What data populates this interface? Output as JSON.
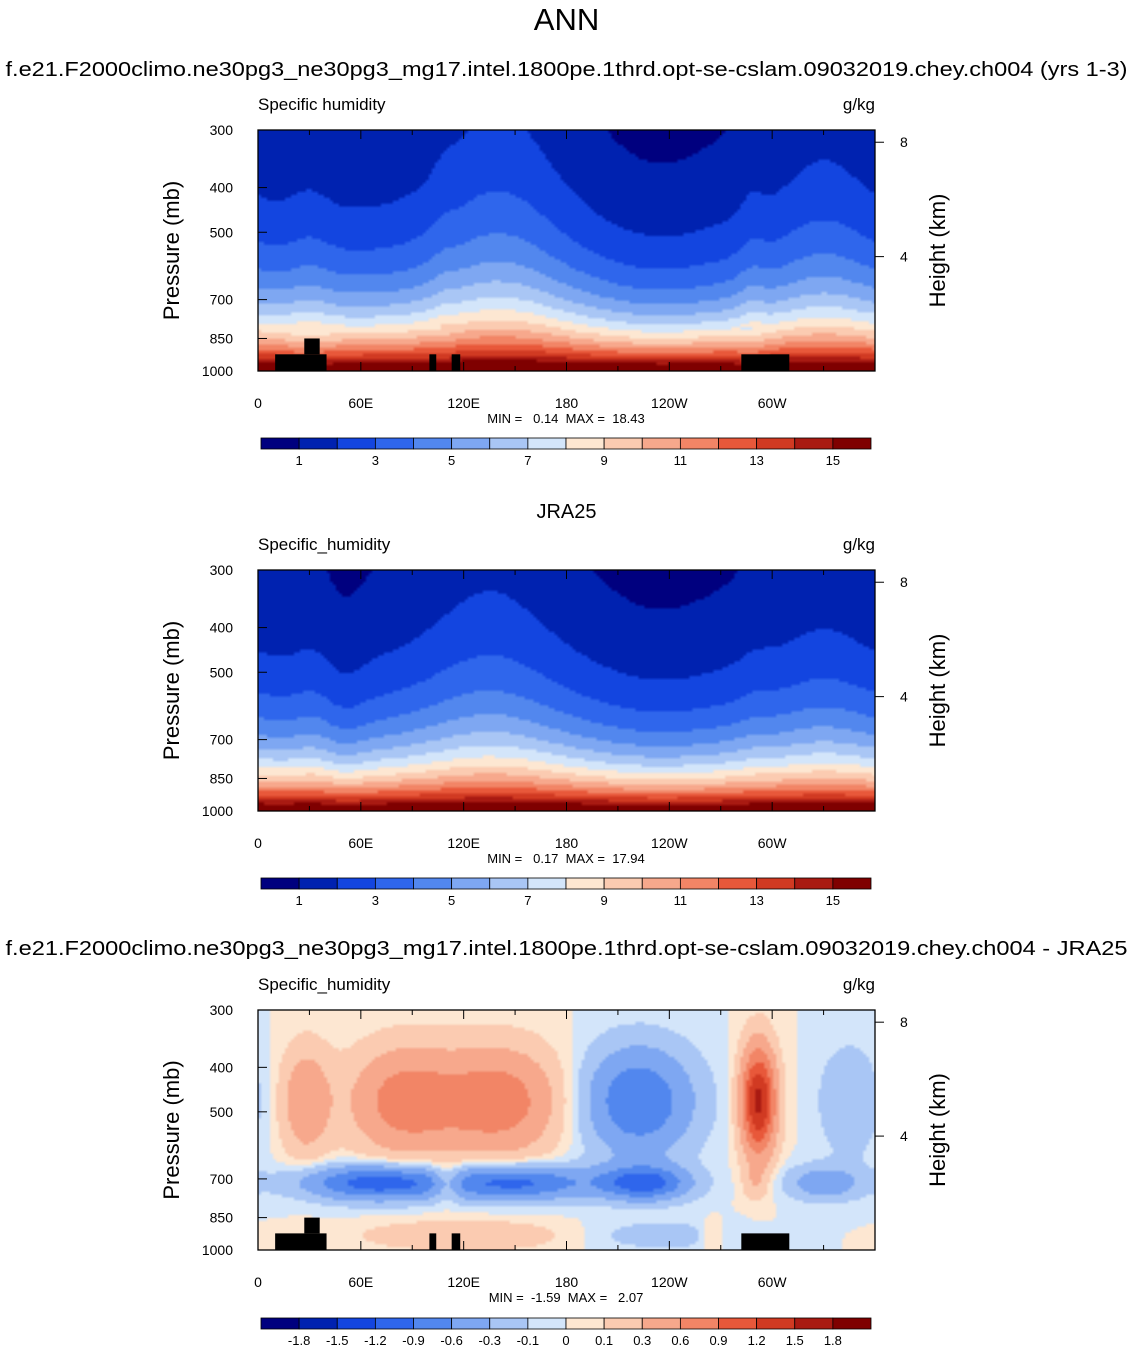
{
  "page": {
    "title": "ANN",
    "model_case": "f.e21.F2000climo.ne30pg3_ne30pg3_mg17.intel.1800pe.1thrd.opt-se-cslam.09032019.chey.ch004 (yrs 1-3)",
    "obs_case": "JRA25",
    "diff_case": "f.e21.F2000climo.ne30pg3_ne30pg3_mg17.intel.1800pe.1thrd.opt-se-cslam.09032019.chey.ch004 - JRA25"
  },
  "chart_data": [
    {
      "type": "heatmap",
      "panel": "model",
      "left_label": "Specific humidity",
      "units": "g/kg",
      "ylabel": "Pressure (mb)",
      "ylabel_right": "Height (km)",
      "x_ticks": [
        "0",
        "60E",
        "120E",
        "180",
        "120W",
        "60W"
      ],
      "x_tick_values": [
        0,
        60,
        120,
        180,
        240,
        300
      ],
      "xlim": [
        0,
        360
      ],
      "y_ticks": [
        "300",
        "400",
        "500",
        "700",
        "850",
        "1000"
      ],
      "y_tick_values": [
        300,
        400,
        500,
        700,
        850,
        1000
      ],
      "ylim": [
        1000,
        300
      ],
      "y_scale": "log",
      "height_ticks": [
        "8",
        "4"
      ],
      "height_tick_values": [
        8,
        4
      ],
      "stats": "MIN =   0.14  MAX =  18.43",
      "min": 0.14,
      "max": 18.43,
      "colorbar_levels": [
        0,
        1,
        2,
        3,
        4,
        5,
        6,
        7,
        8,
        9,
        10,
        11,
        12,
        13,
        14,
        15,
        16
      ],
      "colorbar_labels": [
        "1",
        "3",
        "5",
        "7",
        "9",
        "11",
        "13",
        "15"
      ],
      "colorbar_label_values": [
        1,
        3,
        5,
        7,
        9,
        11,
        13,
        15
      ],
      "masked": true
    },
    {
      "type": "heatmap",
      "panel": "obs",
      "left_label": "Specific_humidity",
      "units": "g/kg",
      "ylabel": "Pressure (mb)",
      "ylabel_right": "Height (km)",
      "x_ticks": [
        "0",
        "60E",
        "120E",
        "180",
        "120W",
        "60W"
      ],
      "x_tick_values": [
        0,
        60,
        120,
        180,
        240,
        300
      ],
      "xlim": [
        0,
        360
      ],
      "y_ticks": [
        "300",
        "400",
        "500",
        "700",
        "850",
        "1000"
      ],
      "y_tick_values": [
        300,
        400,
        500,
        700,
        850,
        1000
      ],
      "ylim": [
        1000,
        300
      ],
      "y_scale": "log",
      "height_ticks": [
        "8",
        "4"
      ],
      "height_tick_values": [
        8,
        4
      ],
      "stats": "MIN =   0.17  MAX =  17.94",
      "min": 0.17,
      "max": 17.94,
      "colorbar_levels": [
        0,
        1,
        2,
        3,
        4,
        5,
        6,
        7,
        8,
        9,
        10,
        11,
        12,
        13,
        14,
        15,
        16
      ],
      "colorbar_labels": [
        "1",
        "3",
        "5",
        "7",
        "9",
        "11",
        "13",
        "15"
      ],
      "colorbar_label_values": [
        1,
        3,
        5,
        7,
        9,
        11,
        13,
        15
      ],
      "masked": false
    },
    {
      "type": "heatmap",
      "panel": "diff",
      "left_label": "Specific_humidity",
      "units": "g/kg",
      "ylabel": "Pressure (mb)",
      "ylabel_right": "Height (km)",
      "x_ticks": [
        "0",
        "60E",
        "120E",
        "180",
        "120W",
        "60W"
      ],
      "x_tick_values": [
        0,
        60,
        120,
        180,
        240,
        300
      ],
      "xlim": [
        0,
        360
      ],
      "y_ticks": [
        "300",
        "400",
        "500",
        "700",
        "850",
        "1000"
      ],
      "y_tick_values": [
        300,
        400,
        500,
        700,
        850,
        1000
      ],
      "ylim": [
        1000,
        300
      ],
      "y_scale": "log",
      "height_ticks": [
        "8",
        "4"
      ],
      "height_tick_values": [
        8,
        4
      ],
      "stats": "MIN =  -1.59  MAX =   2.07",
      "min": -1.59,
      "max": 2.07,
      "colorbar_levels": [
        -2.1,
        -1.8,
        -1.5,
        -1.2,
        -0.9,
        -0.6,
        -0.3,
        -0.1,
        0,
        0.1,
        0.3,
        0.6,
        0.9,
        1.2,
        1.5,
        1.8,
        2.1
      ],
      "colorbar_labels": [
        "-1.8",
        "-1.5",
        "-1.2",
        "-0.9",
        "-0.6",
        "-0.3",
        "-0.1",
        "0",
        "0.1",
        "0.3",
        "0.6",
        "0.9",
        "1.2",
        "1.5",
        "1.8"
      ],
      "colorbar_label_values": [
        -1.8,
        -1.5,
        -1.2,
        -0.9,
        -0.6,
        -0.3,
        -0.1,
        0,
        0.1,
        0.3,
        0.6,
        0.9,
        1.2,
        1.5,
        1.8
      ],
      "masked": true
    }
  ],
  "colormap": [
    "#00007f",
    "#0022b0",
    "#1345e0",
    "#2f66ec",
    "#5287ee",
    "#7ea7f2",
    "#a9c6f5",
    "#d3e5fa",
    "#fde7d2",
    "#fbcbb1",
    "#f7a88c",
    "#f28566",
    "#e8583a",
    "#d13a22",
    "#a91a12",
    "#7f0000"
  ],
  "mask_color": "#000000",
  "mask_regions_lon": [
    [
      10,
      40
    ],
    [
      100,
      104
    ],
    [
      113,
      118
    ],
    [
      282,
      310
    ]
  ]
}
